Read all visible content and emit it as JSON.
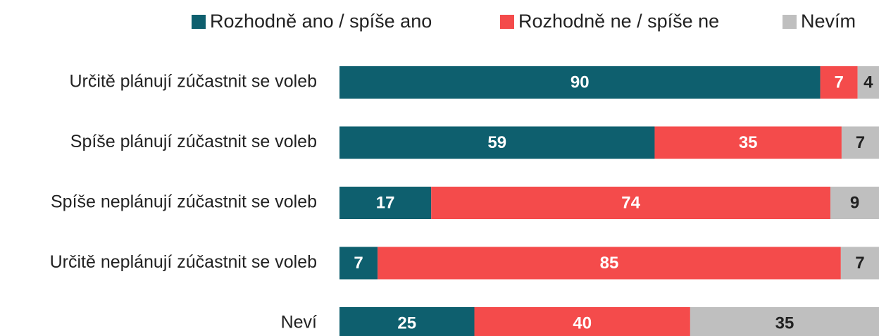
{
  "chart_data": {
    "type": "stacked-bar-percent",
    "categories": [
      "Určitě plánují zúčastnit se voleb",
      "Spíše plánují zúčastnit se voleb",
      "Spíše neplánují zúčastnit se voleb",
      "Určitě neplánují zúčastnit se voleb",
      "Neví"
    ],
    "series": [
      {
        "name": "Rozhodně ano / spíše ano",
        "color": "#0e5f6e",
        "values": [
          90,
          59,
          17,
          7,
          25
        ]
      },
      {
        "name": "Rozhodně ne / spíše ne",
        "color": "#f44b4b",
        "values": [
          7,
          35,
          74,
          85,
          40
        ]
      },
      {
        "name": "Nevím",
        "color": "#bfbfbf",
        "values": [
          4,
          7,
          9,
          7,
          35
        ]
      }
    ],
    "legend": "top"
  }
}
